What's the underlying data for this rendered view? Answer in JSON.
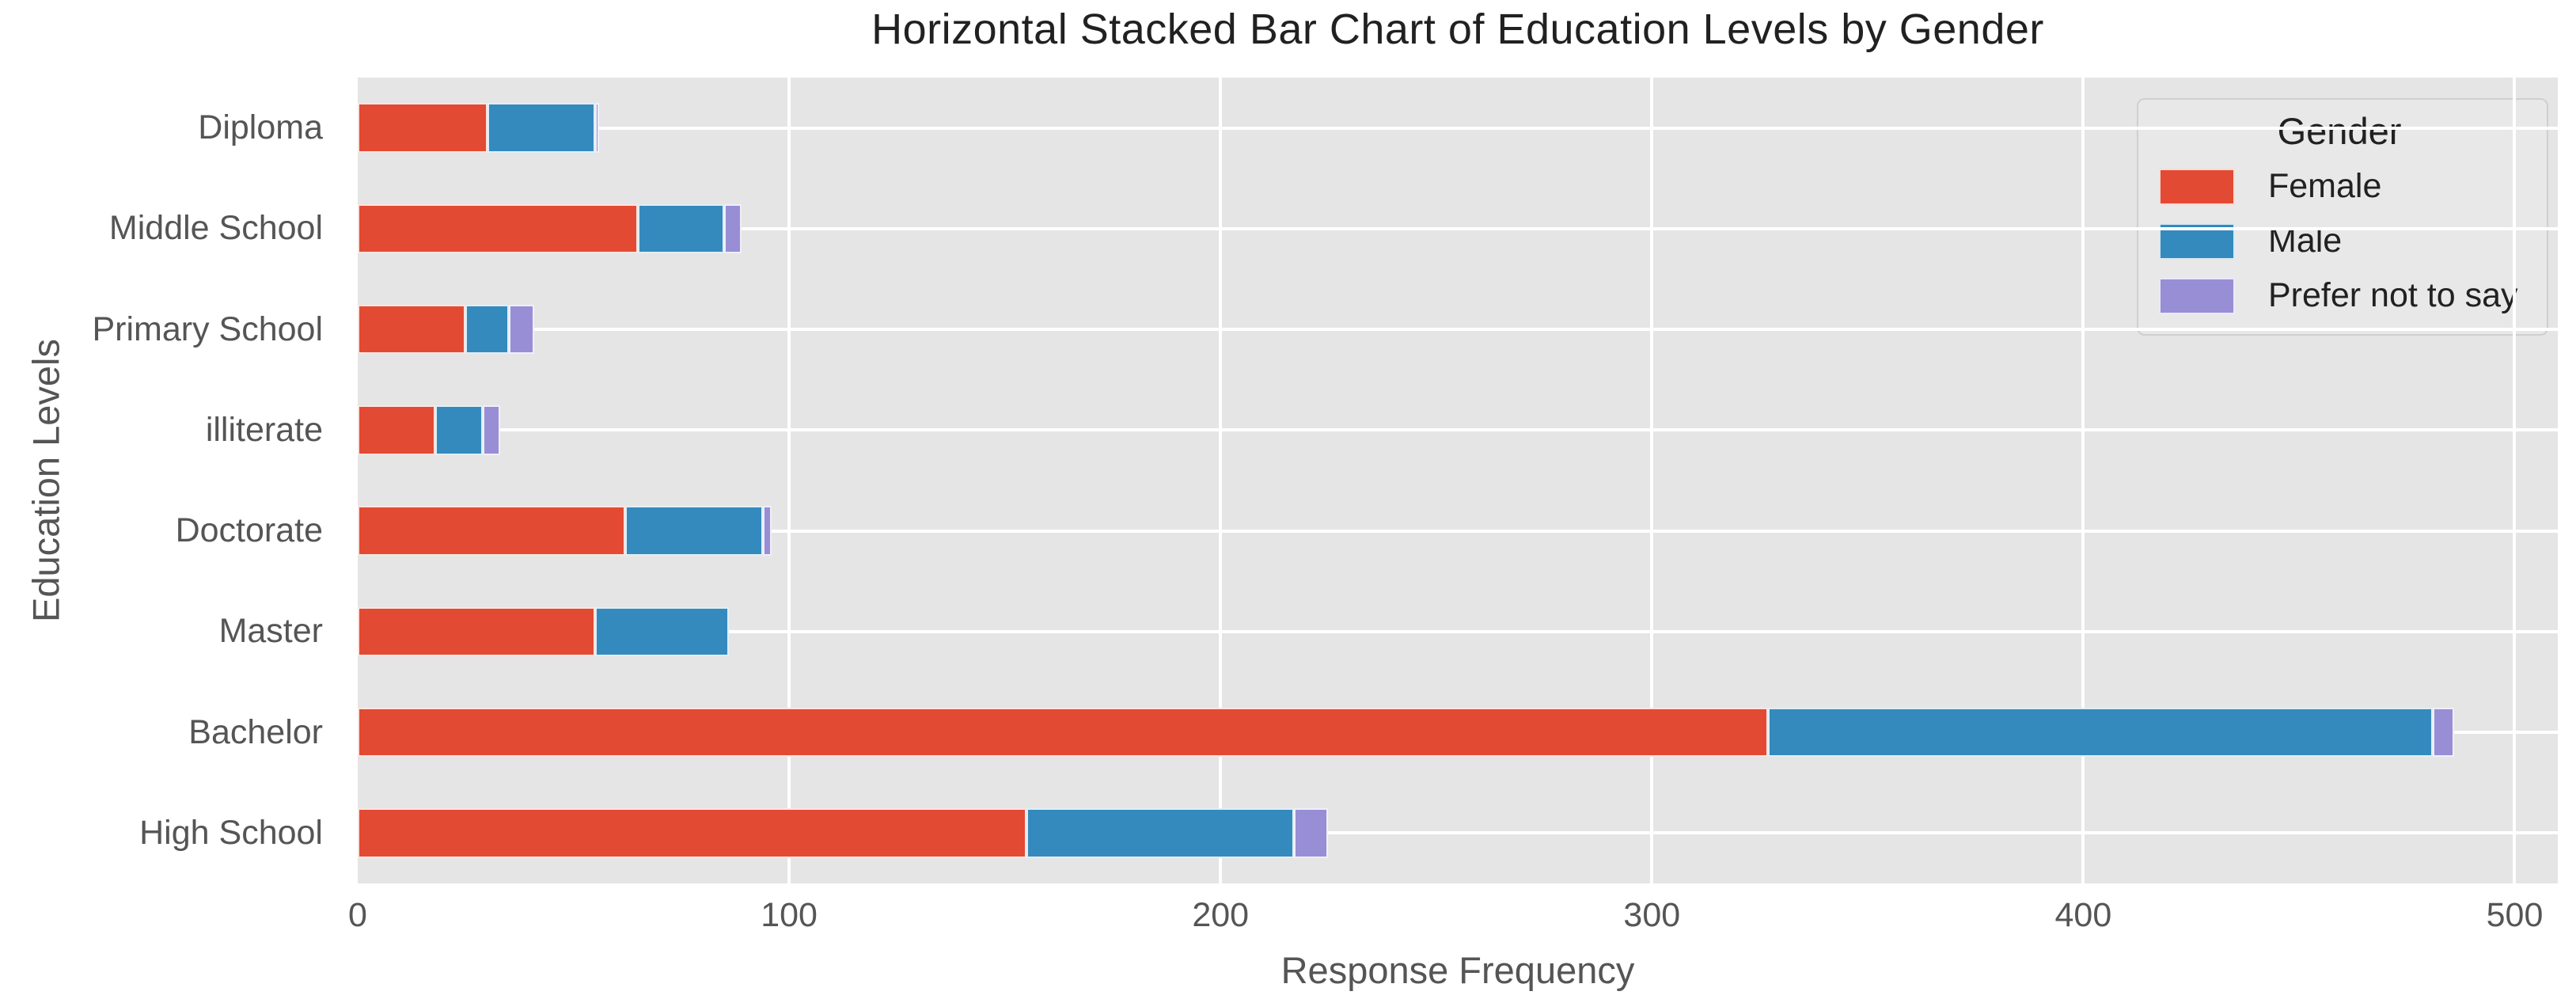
{
  "title": "Horizontal Stacked Bar Chart of Education Levels by Gender",
  "x_axis_label": "Response Frequency",
  "y_axis_label": "Education Levels",
  "legend": {
    "title": "Gender",
    "entries": [
      "Female",
      "Male",
      "Prefer not to say"
    ]
  },
  "colors": {
    "female": "#E24A33",
    "male": "#348ABD",
    "prefer_not_to_say": "#988ED5",
    "plot_background": "#E5E5E5",
    "gridline": "#FFFFFF",
    "tick_text": "#555555",
    "title_text": "#212121"
  },
  "chart_data": {
    "type": "bar",
    "orientation": "horizontal",
    "stacked": true,
    "title": "Horizontal Stacked Bar Chart of Education Levels by Gender",
    "xlabel": "Response Frequency",
    "ylabel": "Education Levels",
    "categories": [
      "Diploma",
      "Middle School",
      "Primary School",
      "illiterate",
      "Doctorate",
      "Master",
      "Bachelor",
      "High School"
    ],
    "series": [
      {
        "name": "Female",
        "color": "#E24A33",
        "values": [
          30,
          65,
          25,
          18,
          62,
          55,
          327,
          155
        ]
      },
      {
        "name": "Male",
        "color": "#348ABD",
        "values": [
          25,
          20,
          10,
          11,
          32,
          31,
          154,
          62
        ]
      },
      {
        "name": "Prefer not to say",
        "color": "#988ED5",
        "values": [
          1,
          4,
          6,
          4,
          2,
          0,
          5,
          8
        ]
      }
    ],
    "totals": [
      56,
      89,
      41,
      33,
      96,
      86,
      486,
      225
    ],
    "xticks": [
      0,
      100,
      200,
      300,
      400,
      500
    ],
    "xlim": [
      0,
      510
    ],
    "grid": true,
    "legend_position": "upper right"
  }
}
